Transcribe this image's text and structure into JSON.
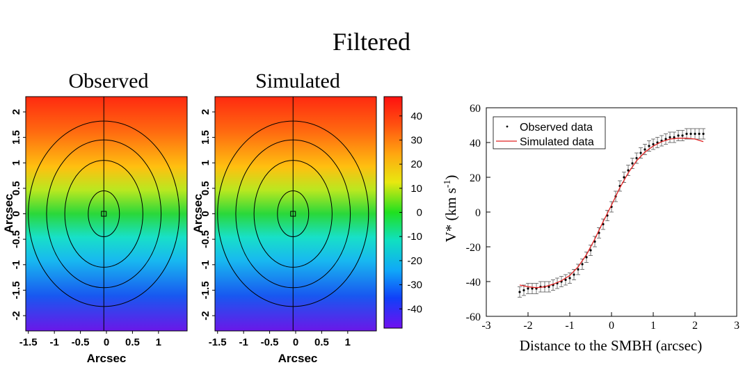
{
  "figure_title": "Filtered",
  "chart_data": [
    {
      "type": "heatmap",
      "title": "Observed",
      "xlabel": "Arcsec",
      "ylabel": "Arcsec",
      "xlim": [
        -1.55,
        1.55
      ],
      "ylim": [
        -2.3,
        2.3
      ],
      "x_ticks": [
        -1.5,
        -1,
        -0.5,
        0,
        0.5,
        1
      ],
      "y_ticks": [
        -2,
        -1.5,
        -1,
        -0.5,
        0,
        0.5,
        1,
        1.5,
        2
      ],
      "contour_semi_axes": [
        [
          0.3,
          0.45
        ],
        [
          0.75,
          1.05
        ],
        [
          1.1,
          1.45
        ],
        [
          1.45,
          1.82
        ]
      ],
      "center_marker": [
        -0.05,
        0
      ],
      "center_line_x": -0.05
    },
    {
      "type": "heatmap",
      "title": "Simulated",
      "xlabel": "Arcsec",
      "ylabel": "Arcsec",
      "xlim": [
        -1.55,
        1.55
      ],
      "ylim": [
        -2.3,
        2.3
      ],
      "x_ticks": [
        -1.5,
        -1,
        -0.5,
        0,
        0.5,
        1
      ],
      "y_ticks": [
        -2,
        -1.5,
        -1,
        -0.5,
        0,
        0.5,
        1,
        1.5,
        2
      ],
      "contour_semi_axes": [
        [
          0.3,
          0.45
        ],
        [
          0.75,
          1.05
        ],
        [
          1.1,
          1.45
        ],
        [
          1.45,
          1.82
        ]
      ],
      "center_marker": [
        -0.05,
        0
      ],
      "center_line_x": -0.05
    },
    {
      "type": "colorbar",
      "range": [
        -48,
        48
      ],
      "ticks": [
        40,
        30,
        20,
        10,
        0,
        -10,
        -20,
        -30,
        -40
      ],
      "tick_labels": [
        "40",
        "30",
        "20",
        "10",
        "0",
        "-10",
        "-20",
        "-30",
        "-40"
      ]
    },
    {
      "type": "scatter",
      "xlabel": "Distance to the SMBH (arcsec)",
      "ylabel": "V* (km s-1)",
      "ylabel_main": "V* (km s",
      "ylabel_sup": "-1",
      "ylabel_close": ")",
      "xlim": [
        -3,
        3
      ],
      "ylim": [
        -60,
        60
      ],
      "x_ticks": [
        -3,
        -2,
        -1,
        0,
        1,
        2,
        3
      ],
      "y_ticks": [
        -60,
        -40,
        -20,
        0,
        20,
        40,
        60
      ],
      "legend_position": "top-left",
      "series": [
        {
          "name": "Observed data",
          "marker": "dot",
          "color": "#000000",
          "x": [
            -2.2,
            -2.1,
            -2.0,
            -1.9,
            -1.8,
            -1.7,
            -1.6,
            -1.5,
            -1.4,
            -1.3,
            -1.2,
            -1.1,
            -1.0,
            -0.9,
            -0.8,
            -0.7,
            -0.6,
            -0.5,
            -0.4,
            -0.3,
            -0.2,
            -0.1,
            0.0,
            0.1,
            0.2,
            0.3,
            0.4,
            0.5,
            0.6,
            0.7,
            0.8,
            0.9,
            1.0,
            1.1,
            1.2,
            1.3,
            1.4,
            1.5,
            1.6,
            1.7,
            1.8,
            1.9,
            2.0,
            2.1,
            2.2
          ],
          "y": [
            -46,
            -45,
            -44,
            -44,
            -44,
            -43,
            -43,
            -43,
            -42,
            -41,
            -40,
            -39,
            -38,
            -36,
            -33,
            -30,
            -26,
            -22,
            -17,
            -12,
            -7,
            -2,
            3,
            9,
            15,
            20,
            24,
            28,
            31,
            34,
            36,
            38,
            39,
            40,
            41,
            42,
            43,
            43,
            44,
            44,
            45,
            45,
            45,
            45,
            45
          ],
          "error": 3
        },
        {
          "name": "Simulated data",
          "marker": "line",
          "color": "#e02020",
          "x": [
            -2.2,
            -2.0,
            -1.8,
            -1.6,
            -1.4,
            -1.2,
            -1.0,
            -0.8,
            -0.6,
            -0.4,
            -0.2,
            0.0,
            0.2,
            0.4,
            0.6,
            0.8,
            1.0,
            1.2,
            1.4,
            1.6,
            1.8,
            2.0,
            2.2
          ],
          "y": [
            -42,
            -43,
            -43.5,
            -43,
            -41.5,
            -39.5,
            -36.5,
            -31.5,
            -24.5,
            -15.5,
            -5.5,
            4,
            14,
            22.5,
            29.5,
            34.5,
            38,
            40.5,
            42,
            42.5,
            42.5,
            42,
            40.5
          ]
        }
      ]
    }
  ]
}
